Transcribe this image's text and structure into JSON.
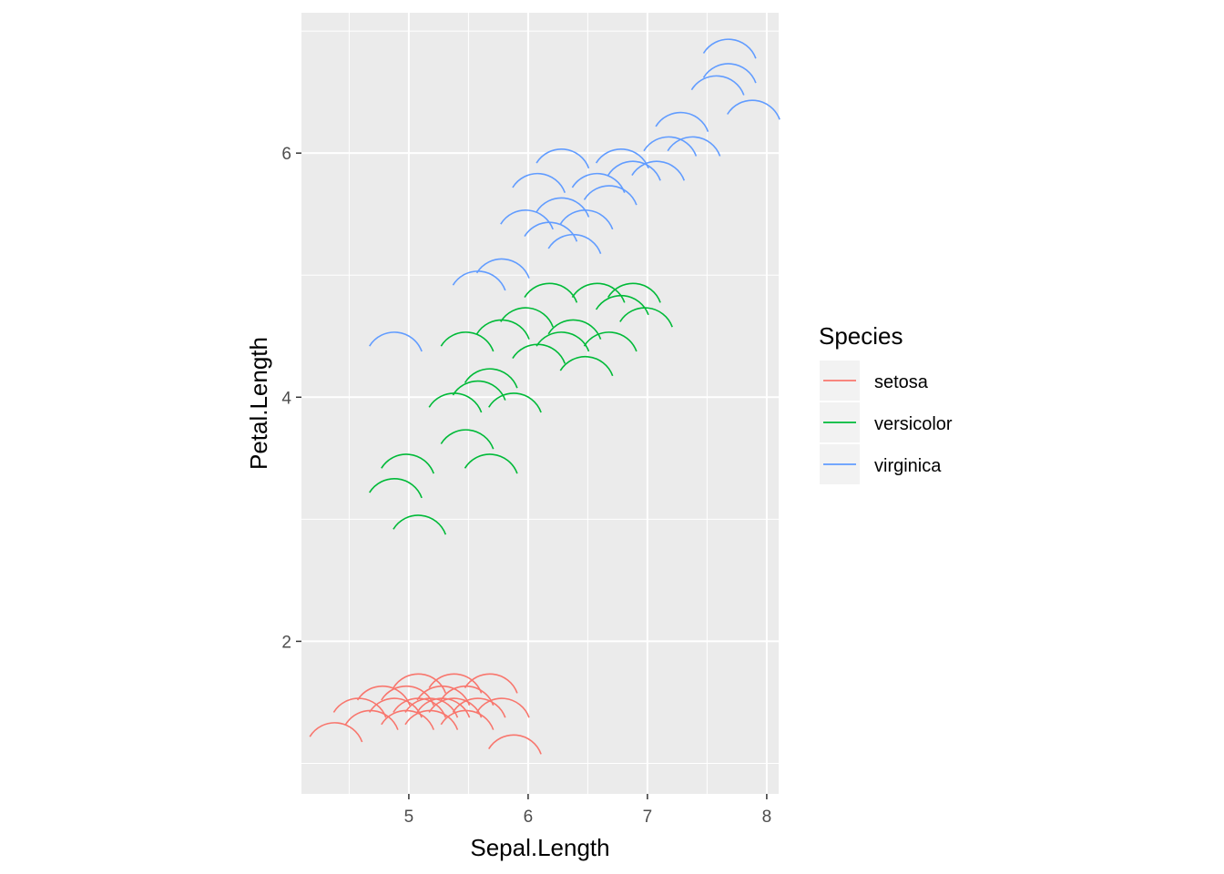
{
  "chart_data": {
    "type": "scatter",
    "marker": "arc",
    "title": "",
    "xlabel": "Sepal.Length",
    "ylabel": "Petal.Length",
    "xlim": [
      4.1,
      8.1
    ],
    "ylim": [
      0.75,
      7.15
    ],
    "x_ticks": [
      5,
      6,
      7,
      8
    ],
    "x_tick_labels": [
      "5",
      "6",
      "7",
      "8"
    ],
    "y_ticks": [
      2,
      4,
      6
    ],
    "y_tick_labels": [
      "2",
      "4",
      "6"
    ],
    "grid": true,
    "legend": {
      "title": "Species",
      "placement": "right",
      "entries": [
        "setosa",
        "versicolor",
        "virginica"
      ]
    },
    "series": [
      {
        "name": "setosa",
        "color": "#F8766D",
        "x": [
          4.4,
          4.6,
          4.7,
          4.8,
          4.9,
          5.0,
          5.0,
          5.1,
          5.1,
          5.2,
          5.2,
          5.3,
          5.3,
          5.4,
          5.4,
          5.5,
          5.5,
          5.6,
          5.7,
          5.8,
          5.9
        ],
        "y": [
          1.3,
          1.5,
          1.4,
          1.6,
          1.5,
          1.4,
          1.6,
          1.5,
          1.7,
          1.5,
          1.4,
          1.6,
          1.5,
          1.7,
          1.5,
          1.4,
          1.6,
          1.5,
          1.7,
          1.5,
          1.2
        ]
      },
      {
        "name": "versicolor",
        "color": "#00BA38",
        "x": [
          4.9,
          5.0,
          5.1,
          5.4,
          5.5,
          5.5,
          5.6,
          5.7,
          5.7,
          5.8,
          5.9,
          6.0,
          6.1,
          6.2,
          6.3,
          6.4,
          6.5,
          6.6,
          6.7,
          6.8,
          6.9,
          7.0
        ],
        "y": [
          3.3,
          3.5,
          3.0,
          4.0,
          4.5,
          3.7,
          4.1,
          4.2,
          3.5,
          4.6,
          4.0,
          4.7,
          4.4,
          4.9,
          4.5,
          4.6,
          4.3,
          4.9,
          4.5,
          4.8,
          4.9,
          4.7
        ]
      },
      {
        "name": "virginica",
        "color": "#619CFF",
        "x": [
          4.9,
          5.6,
          5.8,
          6.0,
          6.1,
          6.2,
          6.3,
          6.3,
          6.4,
          6.5,
          6.6,
          6.7,
          6.8,
          6.9,
          7.1,
          7.2,
          7.3,
          7.4,
          7.6,
          7.7,
          7.7,
          7.9
        ],
        "y": [
          4.5,
          5.0,
          5.1,
          5.5,
          5.8,
          5.4,
          6.0,
          5.6,
          5.3,
          5.5,
          5.8,
          5.7,
          6.0,
          5.9,
          5.9,
          6.1,
          6.3,
          6.1,
          6.6,
          6.7,
          6.9,
          6.4
        ]
      }
    ]
  }
}
